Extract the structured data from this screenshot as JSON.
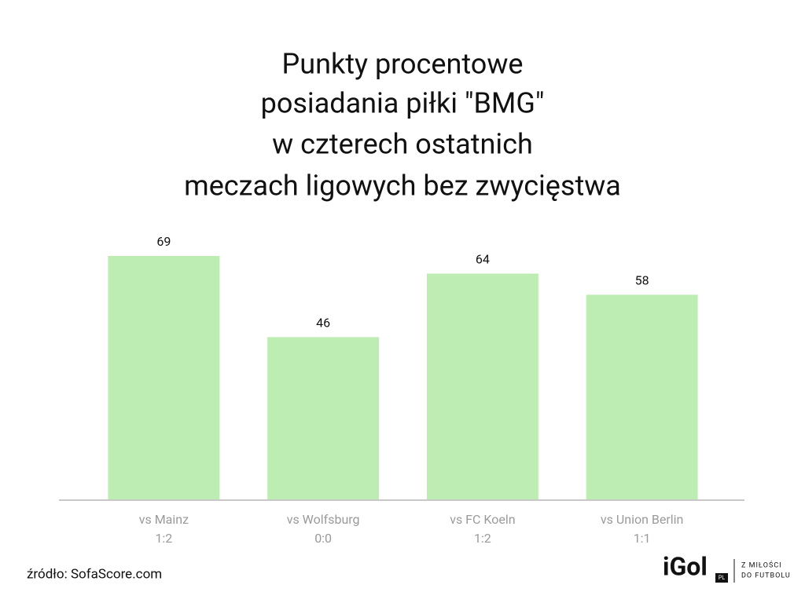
{
  "chart_data": {
    "type": "bar",
    "title": [
      "Punkty procentowe",
      "posiadania piłki \"BMG\"",
      "w czterech ostatnich",
      "meczach ligowych bez zwycięstwa"
    ],
    "categories": [
      [
        "vs Mainz",
        "1:2"
      ],
      [
        "vs Wolfsburg",
        "0:0"
      ],
      [
        "vs FC Koeln",
        "1:2"
      ],
      [
        "vs Union Berlin",
        "1:1"
      ]
    ],
    "values": [
      69,
      46,
      64,
      58
    ],
    "color": "#bdedb2",
    "ylim": [
      0,
      70
    ],
    "source": "źródło: SofaScore.com"
  },
  "logo": {
    "name": "iGol",
    "badge": "PL",
    "tagline": [
      "Z MIŁOŚCI",
      "DO FUTBOLU"
    ]
  }
}
